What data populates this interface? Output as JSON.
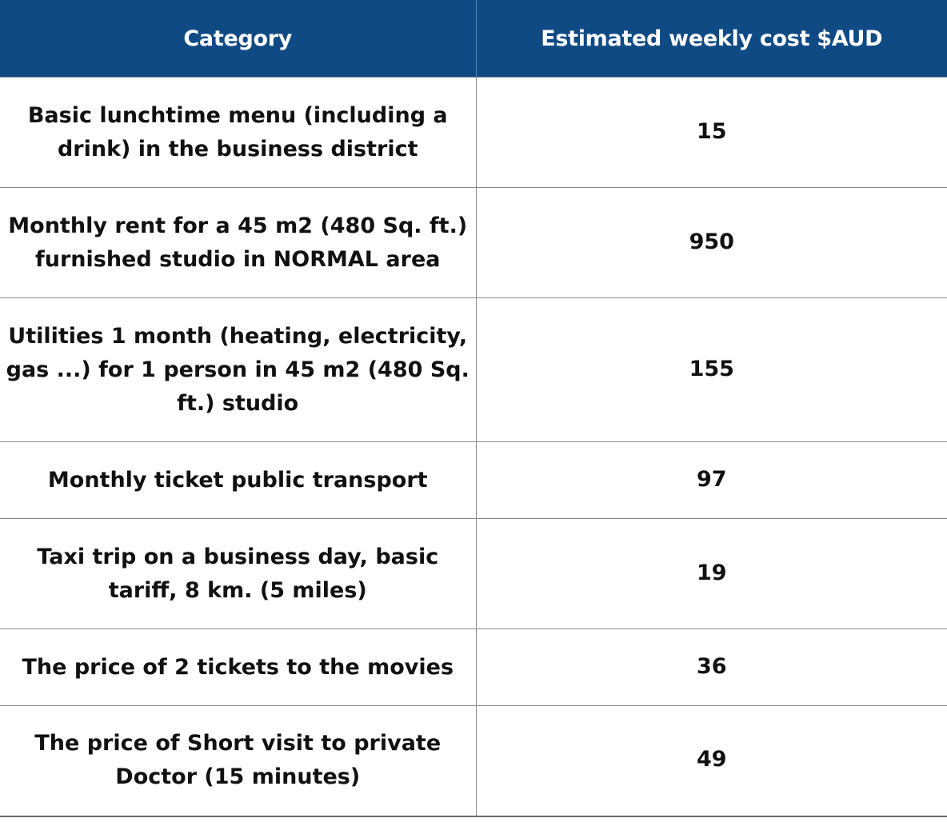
{
  "table": {
    "headers": {
      "category": "Category",
      "cost": "Estimated weekly cost $AUD"
    },
    "rows": [
      {
        "category": "Basic lunchtime menu (including a drink) in the business district",
        "cost": "15"
      },
      {
        "category": "Monthly rent for a 45 m2 (480 Sq. ft.) furnished studio in NORMAL area",
        "cost": "950"
      },
      {
        "category": "Utilities 1 month (heating, electricity, gas ...) for 1 person in 45 m2 (480 Sq. ft.) studio",
        "cost": "155"
      },
      {
        "category": "Monthly ticket public transport",
        "cost": "97"
      },
      {
        "category": "Taxi trip on a business day, basic tariff, 8 km. (5 miles)",
        "cost": "19"
      },
      {
        "category": "The price of 2 tickets to the movies",
        "cost": "36"
      },
      {
        "category": "The price of Short visit to private Doctor (15 minutes)",
        "cost": "49"
      }
    ]
  }
}
